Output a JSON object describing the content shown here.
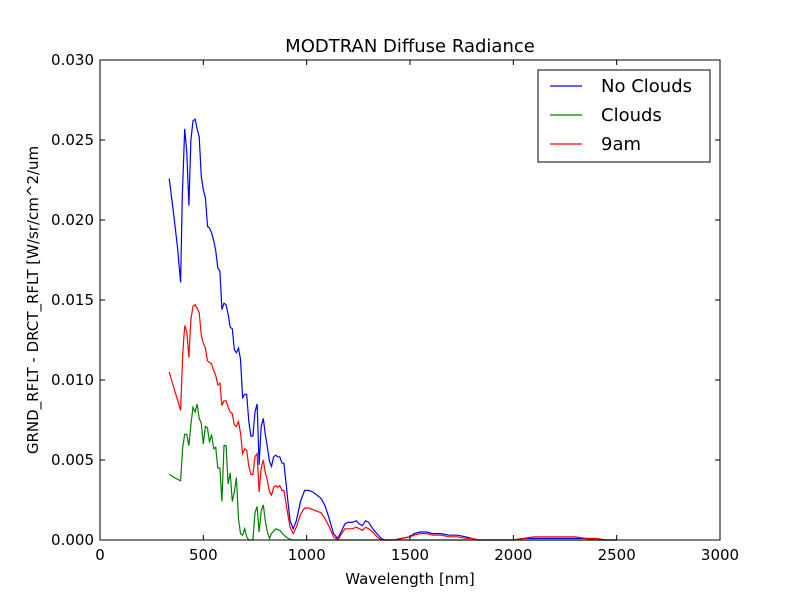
{
  "chart_data": {
    "type": "line",
    "title": "MODTRAN Diffuse Radiance",
    "xlabel": "Wavelength [nm]",
    "ylabel": "GRND_RFLT - DRCT_RFLT [W/sr/cm^2/um",
    "xlim": [
      0,
      3000
    ],
    "ylim": [
      0,
      0.03
    ],
    "xticks": [
      0,
      500,
      1000,
      1500,
      2000,
      2500,
      3000
    ],
    "xtick_labels": [
      "0",
      "500",
      "1000",
      "1500",
      "2000",
      "2500",
      "3000"
    ],
    "yticks": [
      0,
      0.005,
      0.01,
      0.015,
      0.02,
      0.025,
      0.03
    ],
    "ytick_labels": [
      "0.000",
      "0.005",
      "0.010",
      "0.015",
      "0.020",
      "0.025",
      "0.030"
    ],
    "grid": false,
    "legend_position": "top-right",
    "series": [
      {
        "name": "No Clouds",
        "color": "#0000ff",
        "points": [
          [
            335,
            0.0226
          ],
          [
            355,
            0.0205
          ],
          [
            375,
            0.0183
          ],
          [
            390,
            0.0161
          ],
          [
            398,
            0.0215
          ],
          [
            410,
            0.0257
          ],
          [
            420,
            0.0242
          ],
          [
            430,
            0.0209
          ],
          [
            440,
            0.025
          ],
          [
            450,
            0.0262
          ],
          [
            460,
            0.0263
          ],
          [
            470,
            0.0257
          ],
          [
            480,
            0.0252
          ],
          [
            490,
            0.0227
          ],
          [
            500,
            0.0219
          ],
          [
            510,
            0.0214
          ],
          [
            520,
            0.0196
          ],
          [
            530,
            0.0195
          ],
          [
            540,
            0.0192
          ],
          [
            550,
            0.0187
          ],
          [
            560,
            0.0181
          ],
          [
            570,
            0.017
          ],
          [
            580,
            0.0168
          ],
          [
            590,
            0.0144
          ],
          [
            600,
            0.0148
          ],
          [
            610,
            0.0147
          ],
          [
            620,
            0.0141
          ],
          [
            630,
            0.0133
          ],
          [
            640,
            0.0132
          ],
          [
            650,
            0.0119
          ],
          [
            660,
            0.0117
          ],
          [
            670,
            0.012
          ],
          [
            680,
            0.0113
          ],
          [
            690,
            0.0089
          ],
          [
            700,
            0.0091
          ],
          [
            710,
            0.0091
          ],
          [
            720,
            0.0074
          ],
          [
            730,
            0.0065
          ],
          [
            740,
            0.0065
          ],
          [
            750,
            0.008
          ],
          [
            760,
            0.0085
          ],
          [
            770,
            0.0047
          ],
          [
            780,
            0.0071
          ],
          [
            790,
            0.0076
          ],
          [
            800,
            0.0066
          ],
          [
            810,
            0.0058
          ],
          [
            820,
            0.0049
          ],
          [
            830,
            0.0046
          ],
          [
            840,
            0.0052
          ],
          [
            850,
            0.0053
          ],
          [
            860,
            0.0052
          ],
          [
            870,
            0.0052
          ],
          [
            880,
            0.0048
          ],
          [
            890,
            0.0048
          ],
          [
            900,
            0.0036
          ],
          [
            910,
            0.0023
          ],
          [
            920,
            0.0012
          ],
          [
            935,
            0.0007
          ],
          [
            950,
            0.0012
          ],
          [
            970,
            0.0024
          ],
          [
            990,
            0.0031
          ],
          [
            1010,
            0.0031
          ],
          [
            1030,
            0.003
          ],
          [
            1050,
            0.0028
          ],
          [
            1070,
            0.0026
          ],
          [
            1090,
            0.0021
          ],
          [
            1110,
            0.0013
          ],
          [
            1130,
            0.0004
          ],
          [
            1150,
            0.0001
          ],
          [
            1170,
            0.0006
          ],
          [
            1185,
            0.001
          ],
          [
            1200,
            0.0011
          ],
          [
            1220,
            0.0011
          ],
          [
            1240,
            0.0012
          ],
          [
            1255,
            0.001
          ],
          [
            1270,
            0.0009
          ],
          [
            1285,
            0.0012
          ],
          [
            1300,
            0.0011
          ],
          [
            1320,
            0.0007
          ],
          [
            1340,
            0.0004
          ],
          [
            1360,
            0.0001
          ],
          [
            1380,
            0.0
          ],
          [
            1420,
            0.0
          ],
          [
            1460,
            0.0001
          ],
          [
            1500,
            0.0002
          ],
          [
            1520,
            0.0004
          ],
          [
            1550,
            0.0005
          ],
          [
            1580,
            0.0005
          ],
          [
            1610,
            0.0004
          ],
          [
            1650,
            0.0004
          ],
          [
            1690,
            0.0003
          ],
          [
            1730,
            0.0003
          ],
          [
            1770,
            0.0002
          ],
          [
            1800,
            0.0001
          ],
          [
            1830,
            0.0
          ],
          [
            1900,
            0.0
          ],
          [
            1950,
            0.0
          ],
          [
            2000,
            0.0
          ],
          [
            2050,
            0.0001
          ],
          [
            2100,
            0.0001
          ],
          [
            2150,
            0.0001
          ],
          [
            2200,
            0.0001
          ],
          [
            2250,
            0.0001
          ],
          [
            2300,
            0.0001
          ],
          [
            2350,
            0.0001
          ],
          [
            2400,
            0.0
          ],
          [
            2450,
            0.0
          ],
          [
            2500,
            0.0
          ]
        ]
      },
      {
        "name": "Clouds",
        "color": "#008000",
        "points": [
          [
            335,
            0.0041
          ],
          [
            360,
            0.0039
          ],
          [
            390,
            0.0037
          ],
          [
            400,
            0.0058
          ],
          [
            410,
            0.0066
          ],
          [
            420,
            0.0066
          ],
          [
            430,
            0.0059
          ],
          [
            440,
            0.0072
          ],
          [
            450,
            0.0083
          ],
          [
            460,
            0.008
          ],
          [
            470,
            0.0085
          ],
          [
            480,
            0.0076
          ],
          [
            490,
            0.0073
          ],
          [
            500,
            0.006
          ],
          [
            510,
            0.0071
          ],
          [
            520,
            0.007
          ],
          [
            530,
            0.0061
          ],
          [
            540,
            0.0066
          ],
          [
            550,
            0.0057
          ],
          [
            560,
            0.0058
          ],
          [
            570,
            0.0045
          ],
          [
            580,
            0.0045
          ],
          [
            590,
            0.0024
          ],
          [
            600,
            0.0059
          ],
          [
            610,
            0.0059
          ],
          [
            620,
            0.0035
          ],
          [
            630,
            0.0042
          ],
          [
            640,
            0.0024
          ],
          [
            650,
            0.003
          ],
          [
            660,
            0.0039
          ],
          [
            670,
            0.0013
          ],
          [
            680,
            0.0004
          ],
          [
            690,
            0.0003
          ],
          [
            700,
            0.0007
          ],
          [
            710,
            0.0002
          ],
          [
            720,
            0.0
          ],
          [
            730,
            0.0
          ],
          [
            740,
            0.0
          ],
          [
            750,
            0.0017
          ],
          [
            760,
            0.0021
          ],
          [
            770,
            0.0005
          ],
          [
            780,
            0.0018
          ],
          [
            790,
            0.0022
          ],
          [
            800,
            0.0012
          ],
          [
            810,
            0.0005
          ],
          [
            820,
            0.0001
          ],
          [
            830,
            0.0004
          ],
          [
            850,
            0.0007
          ],
          [
            870,
            0.0006
          ],
          [
            890,
            0.0003
          ],
          [
            910,
            0.0001
          ],
          [
            930,
            0.0
          ],
          [
            1000,
            0.0
          ],
          [
            1050,
            0.0
          ],
          [
            1100,
            0.0
          ],
          [
            1200,
            0.0
          ],
          [
            1300,
            0.0
          ],
          [
            1400,
            0.0
          ],
          [
            1500,
            0.0
          ],
          [
            1600,
            0.0
          ],
          [
            1700,
            0.0
          ],
          [
            1800,
            0.0
          ],
          [
            1900,
            0.0
          ],
          [
            2000,
            0.0
          ],
          [
            2100,
            0.0
          ],
          [
            2200,
            0.0
          ],
          [
            2300,
            0.0
          ],
          [
            2400,
            0.0
          ],
          [
            2500,
            0.0
          ]
        ]
      },
      {
        "name": "9am",
        "color": "#ff0000",
        "points": [
          [
            335,
            0.0105
          ],
          [
            360,
            0.0094
          ],
          [
            390,
            0.0081
          ],
          [
            400,
            0.0116
          ],
          [
            410,
            0.0134
          ],
          [
            420,
            0.013
          ],
          [
            430,
            0.0114
          ],
          [
            440,
            0.0138
          ],
          [
            450,
            0.0146
          ],
          [
            460,
            0.0147
          ],
          [
            470,
            0.0145
          ],
          [
            480,
            0.0142
          ],
          [
            490,
            0.0128
          ],
          [
            500,
            0.0123
          ],
          [
            510,
            0.012
          ],
          [
            520,
            0.0112
          ],
          [
            530,
            0.0111
          ],
          [
            540,
            0.011
          ],
          [
            550,
            0.0106
          ],
          [
            560,
            0.0103
          ],
          [
            570,
            0.0097
          ],
          [
            580,
            0.0098
          ],
          [
            590,
            0.0084
          ],
          [
            600,
            0.0087
          ],
          [
            610,
            0.0087
          ],
          [
            620,
            0.0083
          ],
          [
            630,
            0.008
          ],
          [
            640,
            0.0079
          ],
          [
            650,
            0.0072
          ],
          [
            660,
            0.0071
          ],
          [
            670,
            0.0074
          ],
          [
            680,
            0.0067
          ],
          [
            690,
            0.0054
          ],
          [
            700,
            0.0057
          ],
          [
            710,
            0.0056
          ],
          [
            720,
            0.0046
          ],
          [
            730,
            0.0041
          ],
          [
            740,
            0.0041
          ],
          [
            750,
            0.0052
          ],
          [
            760,
            0.0054
          ],
          [
            770,
            0.003
          ],
          [
            780,
            0.0045
          ],
          [
            790,
            0.005
          ],
          [
            800,
            0.0042
          ],
          [
            810,
            0.0037
          ],
          [
            820,
            0.003
          ],
          [
            830,
            0.0028
          ],
          [
            840,
            0.0033
          ],
          [
            850,
            0.0034
          ],
          [
            860,
            0.0033
          ],
          [
            870,
            0.0034
          ],
          [
            880,
            0.0031
          ],
          [
            890,
            0.0031
          ],
          [
            900,
            0.0023
          ],
          [
            910,
            0.0015
          ],
          [
            920,
            0.0008
          ],
          [
            935,
            0.0004
          ],
          [
            950,
            0.0008
          ],
          [
            970,
            0.0016
          ],
          [
            990,
            0.002
          ],
          [
            1010,
            0.002
          ],
          [
            1030,
            0.0019
          ],
          [
            1050,
            0.0018
          ],
          [
            1070,
            0.0017
          ],
          [
            1090,
            0.0013
          ],
          [
            1110,
            0.0008
          ],
          [
            1130,
            0.0002
          ],
          [
            1150,
            0.0
          ],
          [
            1170,
            0.0004
          ],
          [
            1185,
            0.0007
          ],
          [
            1200,
            0.0007
          ],
          [
            1220,
            0.0007
          ],
          [
            1240,
            0.0008
          ],
          [
            1255,
            0.0007
          ],
          [
            1270,
            0.0006
          ],
          [
            1285,
            0.0008
          ],
          [
            1300,
            0.0007
          ],
          [
            1320,
            0.0005
          ],
          [
            1340,
            0.0002
          ],
          [
            1360,
            0.0
          ],
          [
            1380,
            0.0
          ],
          [
            1420,
            0.0
          ],
          [
            1460,
            0.0001
          ],
          [
            1500,
            0.0002
          ],
          [
            1520,
            0.0003
          ],
          [
            1550,
            0.0004
          ],
          [
            1580,
            0.0004
          ],
          [
            1610,
            0.0003
          ],
          [
            1650,
            0.0003
          ],
          [
            1690,
            0.0002
          ],
          [
            1730,
            0.0002
          ],
          [
            1770,
            0.0001
          ],
          [
            1800,
            0.0001
          ],
          [
            1830,
            0.0
          ],
          [
            1900,
            0.0
          ],
          [
            1950,
            0.0
          ],
          [
            2000,
            0.0
          ],
          [
            2050,
            0.0001
          ],
          [
            2100,
            0.0002
          ],
          [
            2150,
            0.0002
          ],
          [
            2200,
            0.0002
          ],
          [
            2250,
            0.0002
          ],
          [
            2300,
            0.0002
          ],
          [
            2350,
            0.0001
          ],
          [
            2400,
            0.0001
          ],
          [
            2450,
            0.0
          ],
          [
            2500,
            0.0
          ]
        ]
      }
    ]
  }
}
